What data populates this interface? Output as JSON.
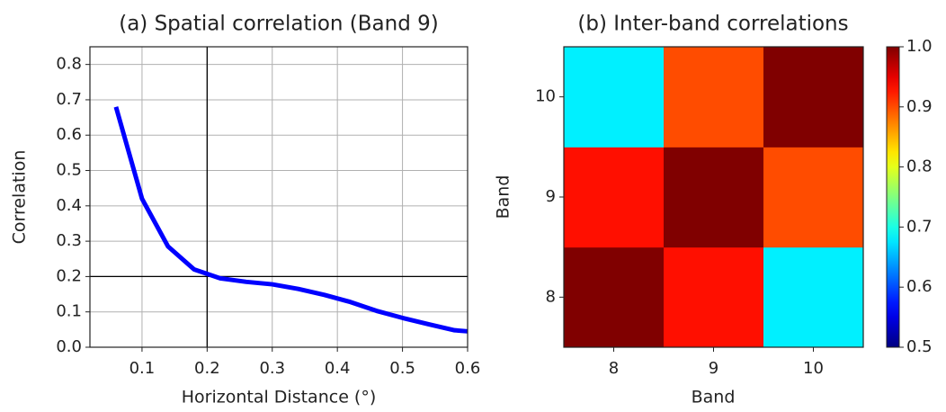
{
  "chart_data": [
    {
      "type": "line",
      "title": "(a) Spatial correlation (Band 9)",
      "x_label": "Horizontal Distance (°)",
      "y_label": "Correlation",
      "x": [
        0.06,
        0.1,
        0.14,
        0.18,
        0.22,
        0.26,
        0.3,
        0.34,
        0.38,
        0.42,
        0.46,
        0.5,
        0.54,
        0.58,
        0.6
      ],
      "series": [
        {
          "color": "#0000ff",
          "values": [
            0.68,
            0.42,
            0.285,
            0.22,
            0.195,
            0.185,
            0.178,
            0.165,
            0.148,
            0.128,
            0.103,
            0.083,
            0.065,
            0.048,
            0.045
          ]
        }
      ],
      "xlim": [
        0.02,
        0.6
      ],
      "ylim": [
        0,
        0.85
      ],
      "xticks": [
        0.1,
        0.2,
        0.3,
        0.4,
        0.5,
        0.6
      ],
      "yticks": [
        {
          "value": 0,
          "label": "0.0"
        },
        0.1,
        0.2,
        0.3,
        0.4,
        0.5,
        0.6,
        0.7,
        0.8
      ],
      "grid": true,
      "hlines": [
        0.2
      ],
      "vlines": [
        0.2
      ]
    },
    {
      "type": "heatmap",
      "title": "(b) Inter-band correlations",
      "x_label": "Band",
      "y_label": "Band",
      "x_categories": [
        "8",
        "9",
        "10"
      ],
      "y_categories": [
        "8",
        "9",
        "10"
      ],
      "values": [
        [
          1.0,
          0.93,
          0.68
        ],
        [
          0.93,
          1.0,
          0.9
        ],
        [
          0.68,
          0.9,
          1.0
        ]
      ],
      "colormap": "jet",
      "clim": [
        0.5,
        1.0
      ],
      "cticks": [
        0.5,
        0.6,
        0.7,
        0.8,
        0.9,
        {
          "value": 1.0,
          "label": "1.0"
        }
      ]
    }
  ]
}
